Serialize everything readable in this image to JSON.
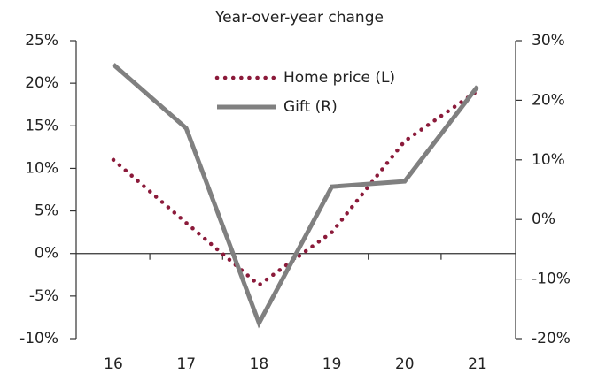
{
  "chart_data": {
    "type": "line",
    "title": "Year-over-year change",
    "categories": [
      "16",
      "17",
      "18",
      "19",
      "20",
      "21"
    ],
    "series": [
      {
        "name": "Home price (L)",
        "color": "#8b1a3a",
        "axis": "y",
        "style": "dotted",
        "values": [
          11,
          3.6,
          -3.7,
          2.5,
          13.2,
          19.1
        ]
      },
      {
        "name": "Gift (R)",
        "color": "#808080",
        "axis": "y2",
        "style": "solid",
        "values": [
          26,
          15.3,
          -17.4,
          5.5,
          6.4,
          22.3
        ]
      }
    ],
    "ylim": [
      -10,
      25
    ],
    "yticks": [
      {
        "value": -10,
        "label": "-10%"
      },
      {
        "value": -5,
        "label": "-5%"
      },
      {
        "value": 0,
        "label": "0%"
      },
      {
        "value": 5,
        "label": "5%"
      },
      {
        "value": 10,
        "label": "10%"
      },
      {
        "value": 15,
        "label": "15%"
      },
      {
        "value": 20,
        "label": "20%"
      },
      {
        "value": 25,
        "label": "25%"
      }
    ],
    "y2lim": [
      -20,
      30
    ],
    "y2ticks": [
      {
        "value": -20,
        "label": "-20%"
      },
      {
        "value": -10,
        "label": "-10%"
      },
      {
        "value": 0,
        "label": "0%"
      },
      {
        "value": 10,
        "label": "10%"
      },
      {
        "value": 20,
        "label": "20%"
      },
      {
        "value": 30,
        "label": "30%"
      }
    ],
    "legend": "top-center"
  }
}
